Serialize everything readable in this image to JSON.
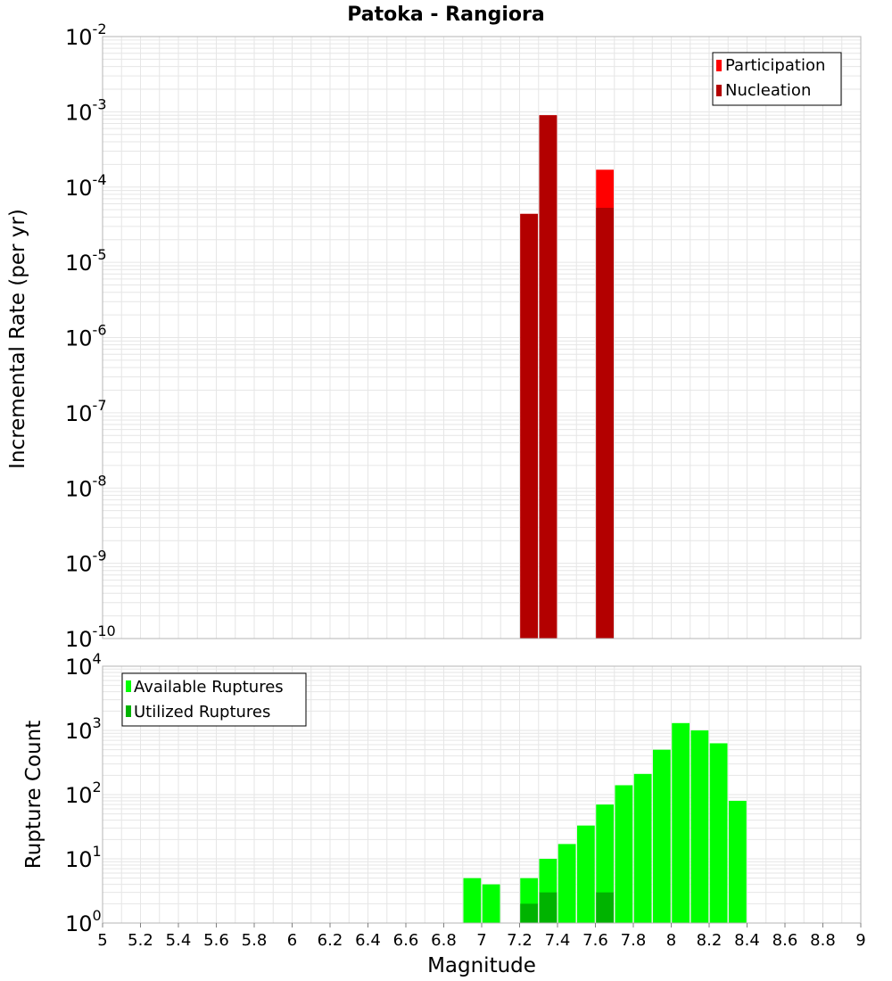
{
  "chart_data": [
    {
      "type": "bar",
      "title": "Patoka - Rangiora",
      "ylabel": "Incremental Rate (per yr)",
      "yscale": "log",
      "ylim": [
        1e-10,
        0.01
      ],
      "y_tick_labels": [
        {
          "base": "10",
          "exp": "-10"
        },
        {
          "base": "10",
          "exp": "-9"
        },
        {
          "base": "10",
          "exp": "-8"
        },
        {
          "base": "10",
          "exp": "-7"
        },
        {
          "base": "10",
          "exp": "-6"
        },
        {
          "base": "10",
          "exp": "-5"
        },
        {
          "base": "10",
          "exp": "-4"
        },
        {
          "base": "10",
          "exp": "-3"
        },
        {
          "base": "10",
          "exp": "-2"
        }
      ],
      "xlim": [
        5,
        9
      ],
      "legend_position": "top-right",
      "series": [
        {
          "name": "Participation",
          "color": "#ff0000",
          "x": [
            7.25,
            7.35,
            7.65
          ],
          "values": [
            4.4e-05,
            0.0009,
            0.00017
          ]
        },
        {
          "name": "Nucleation",
          "color": "#b30000",
          "x": [
            7.25,
            7.35,
            7.65
          ],
          "values": [
            4.4e-05,
            0.0009,
            5.3e-05
          ]
        }
      ]
    },
    {
      "type": "bar",
      "ylabel": "Rupture Count",
      "xlabel": "Magnitude",
      "yscale": "log",
      "ylim": [
        1,
        10000
      ],
      "y_tick_labels": [
        {
          "base": "10",
          "exp": "0"
        },
        {
          "base": "10",
          "exp": "1"
        },
        {
          "base": "10",
          "exp": "2"
        },
        {
          "base": "10",
          "exp": "3"
        },
        {
          "base": "10",
          "exp": "4"
        }
      ],
      "xlim": [
        5,
        9
      ],
      "x_ticks": [
        "5",
        "5.2",
        "5.4",
        "5.6",
        "5.8",
        "6",
        "6.2",
        "6.4",
        "6.6",
        "6.8",
        "7",
        "7.2",
        "7.4",
        "7.6",
        "7.8",
        "8",
        "8.2",
        "8.4",
        "8.6",
        "8.8",
        "9"
      ],
      "legend_position": "top-left",
      "series": [
        {
          "name": "Available Ruptures",
          "color": "#00ff00",
          "x": [
            6.95,
            7.05,
            7.25,
            7.35,
            7.45,
            7.55,
            7.65,
            7.75,
            7.85,
            7.95,
            8.05,
            8.15,
            8.25,
            8.35
          ],
          "values": [
            5,
            4,
            5,
            10,
            17,
            33,
            70,
            140,
            210,
            500,
            1300,
            1000,
            630,
            80
          ]
        },
        {
          "name": "Utilized Ruptures",
          "color": "#00b300",
          "x": [
            7.25,
            7.35,
            7.65
          ],
          "values": [
            2,
            3,
            3
          ]
        }
      ]
    }
  ]
}
